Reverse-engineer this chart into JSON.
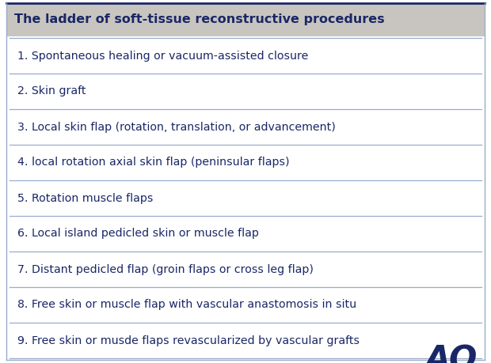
{
  "title": "The ladder of soft-tissue reconstructive procedures",
  "title_bg_color": "#c8c5c0",
  "title_text_color": "#1a2766",
  "body_bg_color": "#ffffff",
  "text_color": "#1a2766",
  "divider_color": "#9aabcc",
  "top_border_color": "#1a2766",
  "outer_border_color": "#9aabcc",
  "items": [
    "1. Spontaneous healing or vacuum-assisted closure",
    "2. Skin graft",
    "3. Local skin flap (rotation, translation, or advancement)",
    "4. local rotation axial skin flap (peninsular flaps)",
    "5. Rotation muscle flaps",
    "6. Local island pedicled skin or muscle flap",
    "7. Distant pedicled flap (groin flaps or cross leg flap)",
    "8. Free skin or muscle flap with vascular anastomosis in situ",
    "9. Free skin or musde flaps revascularized by vascular grafts"
  ],
  "ao_color": "#1a2766",
  "ao_text": "AO",
  "ao_fontsize": 30,
  "title_fontsize": 11.5,
  "item_fontsize": 10.2,
  "fig_width": 6.2,
  "fig_height": 4.59,
  "fig_dpi": 100
}
